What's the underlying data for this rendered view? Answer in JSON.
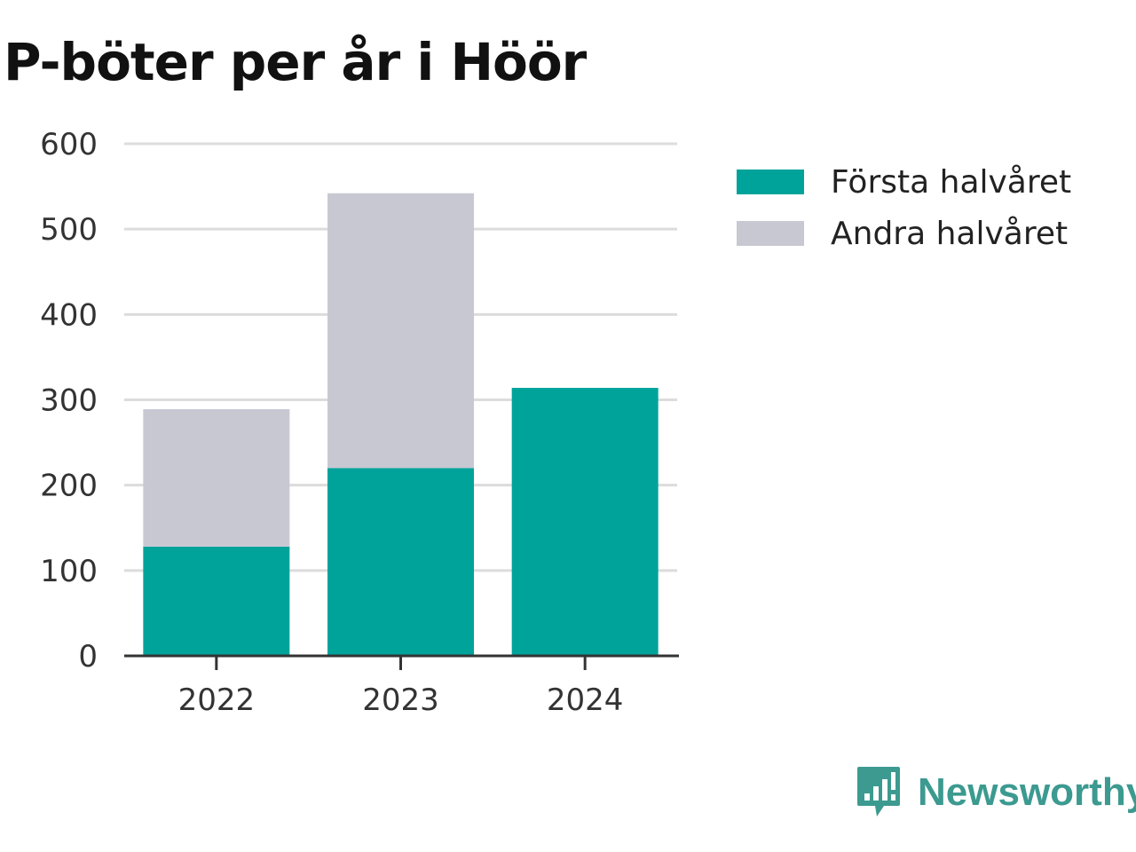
{
  "title": "P-böter per år i Höör",
  "brand": {
    "name": "Newsworthy",
    "icon": "newsworthy-logo-icon",
    "color": "#3c9a90"
  },
  "legend": [
    {
      "label": "Första halvåret",
      "color": "#00a39a"
    },
    {
      "label": "Andra halvåret",
      "color": "#c8c8d3"
    }
  ],
  "chart_data": {
    "type": "bar",
    "stacked": true,
    "title": "P-böter per år i Höör",
    "categories": [
      "2022",
      "2023",
      "2024"
    ],
    "series": [
      {
        "name": "Första halvåret",
        "color": "#00a39a",
        "values": [
          128,
          220,
          314
        ]
      },
      {
        "name": "Andra halvåret",
        "color": "#c8c8d3",
        "values": [
          161,
          322,
          0
        ]
      }
    ],
    "ylim": [
      0,
      600
    ],
    "yticks": [
      "0",
      "100",
      "200",
      "300",
      "400",
      "500",
      "600"
    ],
    "grid": true,
    "legend_position": "right",
    "xlabel": "",
    "ylabel": ""
  }
}
